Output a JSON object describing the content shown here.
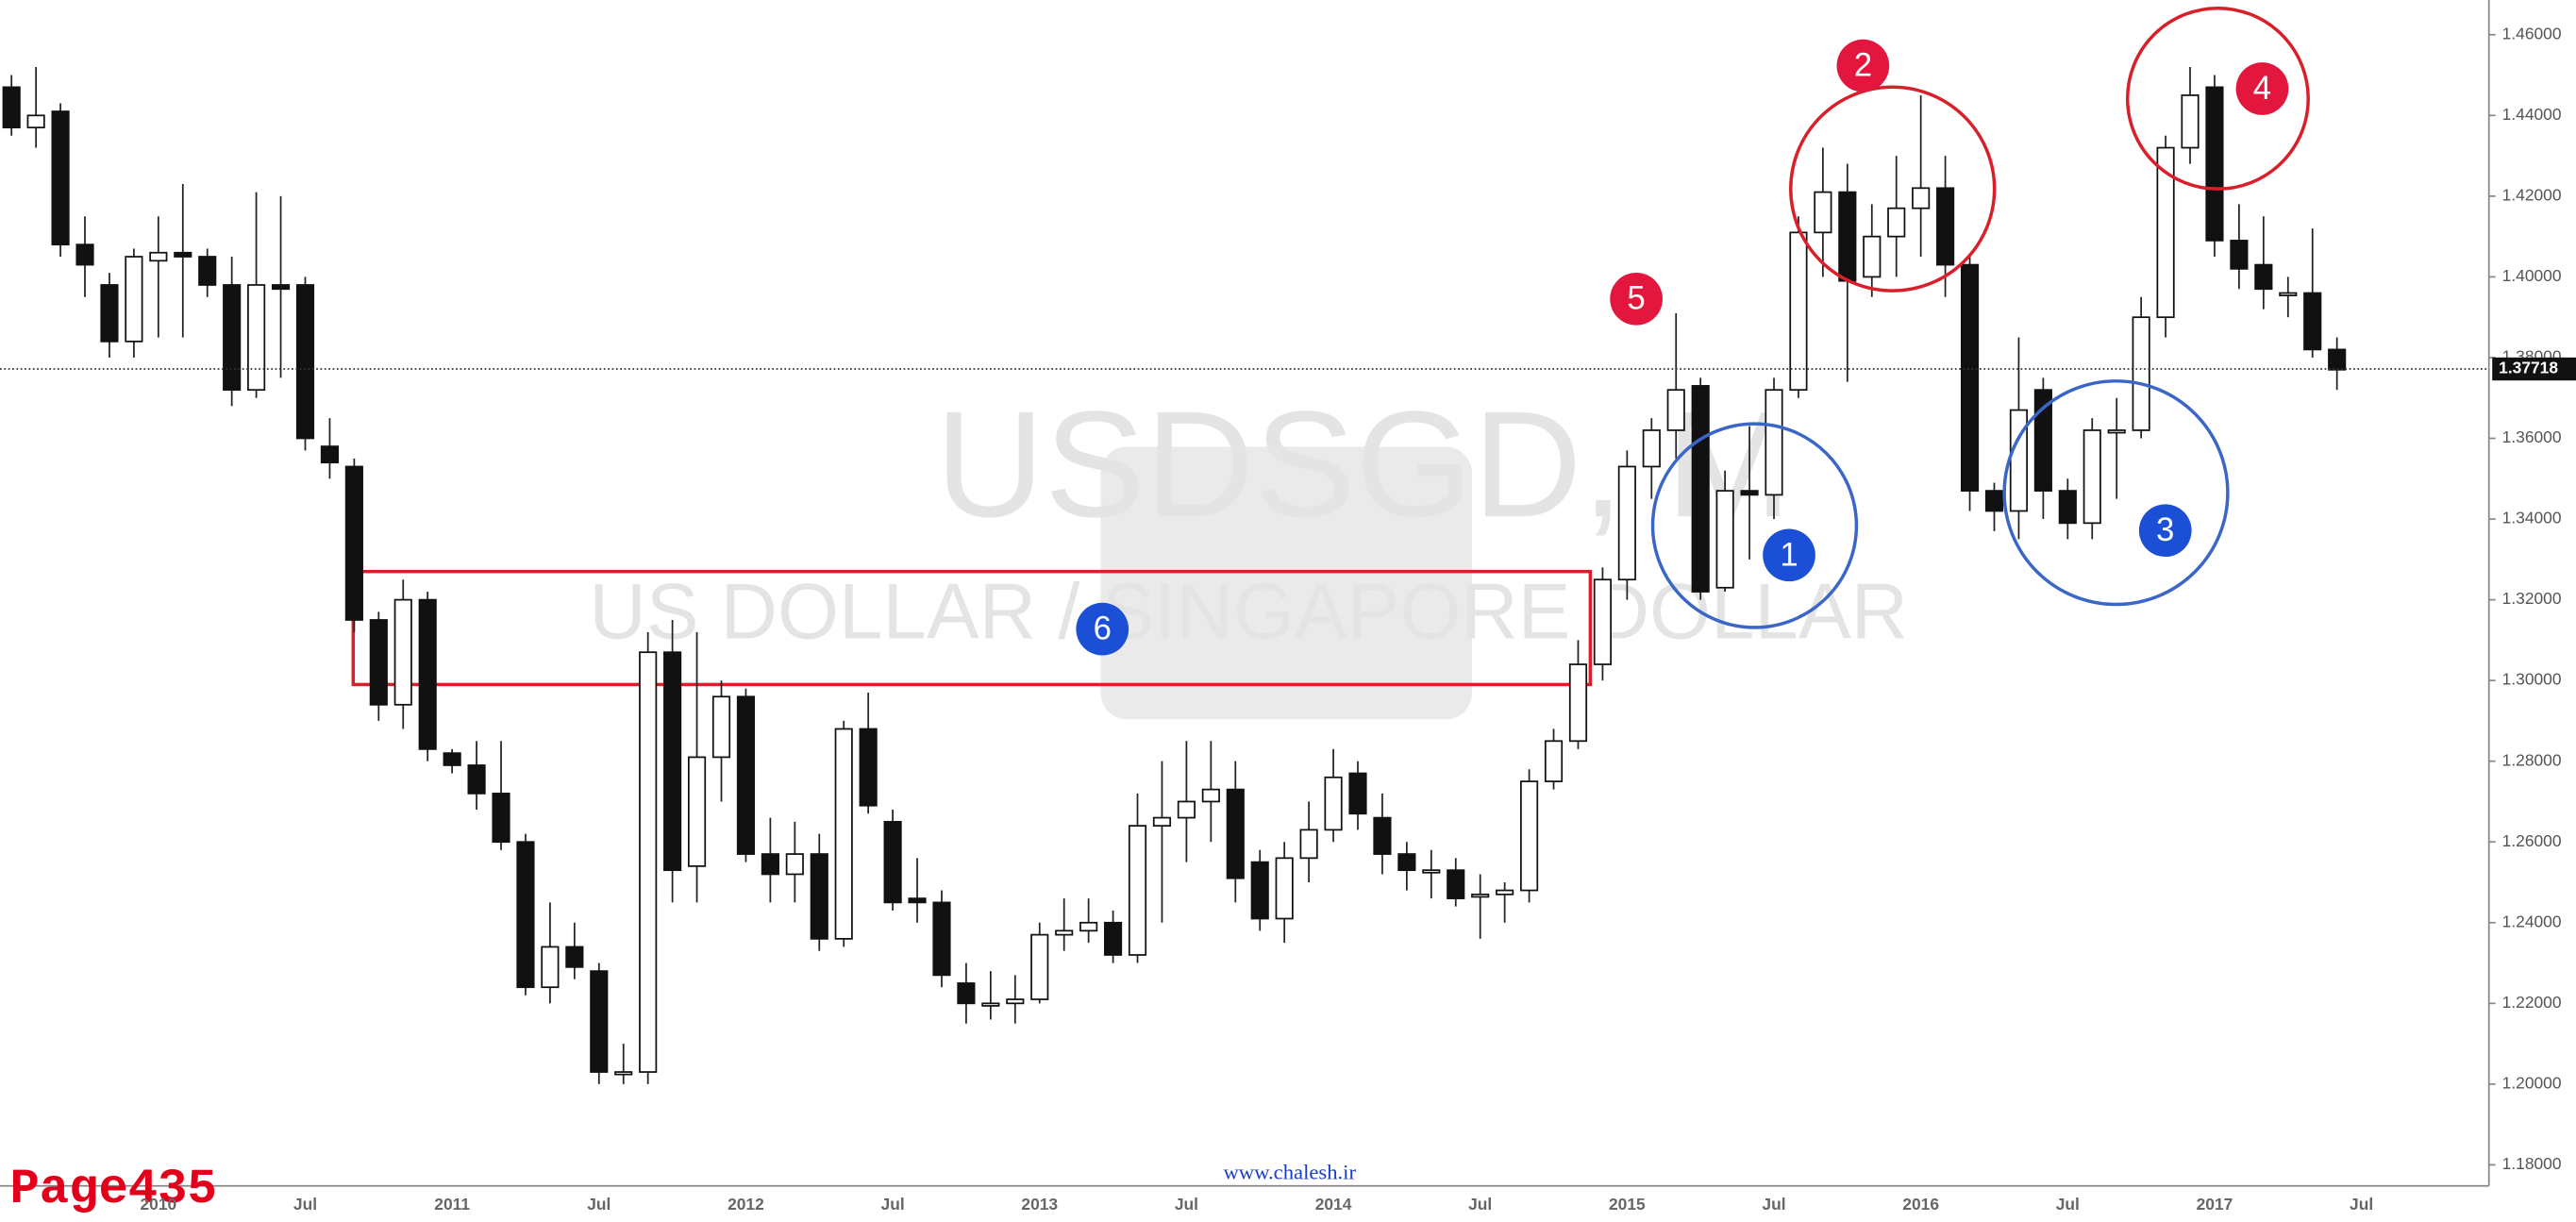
{
  "chart_data": {
    "type": "candlestick",
    "watermark_title": "USDSGD, M",
    "watermark_subtitle": "US DOLLAR / SINGAPORE DOLLAR",
    "website": "www.chalesh.ir",
    "page_label": "Page435",
    "categories": [
      null,
      null,
      null,
      null,
      null,
      null,
      "2010",
      null,
      null,
      null,
      null,
      null,
      "Jul",
      null,
      null,
      null,
      null,
      null,
      "2011",
      null,
      null,
      null,
      null,
      null,
      "Jul",
      null,
      null,
      null,
      null,
      null,
      "2012",
      null,
      null,
      null,
      null,
      null,
      "Jul",
      null,
      null,
      null,
      null,
      null,
      "2013",
      null,
      null,
      null,
      null,
      null,
      "Jul",
      null,
      null,
      null,
      null,
      null,
      "2014",
      null,
      null,
      null,
      null,
      null,
      "Jul",
      null,
      null,
      null,
      null,
      null,
      "2015",
      null,
      null,
      null,
      null,
      null,
      "Jul",
      null,
      null,
      null,
      null,
      null,
      "2016",
      null,
      null,
      null,
      null,
      null,
      "Jul",
      null,
      null,
      null,
      null,
      null,
      "2017",
      null,
      null,
      null,
      null,
      null,
      "Jul"
    ],
    "open": [
      1.447,
      1.437,
      1.441,
      1.408,
      1.398,
      1.384,
      1.404,
      1.406,
      1.405,
      1.398,
      1.372,
      1.398,
      1.398,
      1.358,
      1.353,
      1.315,
      1.294,
      1.32,
      1.282,
      1.279,
      1.272,
      1.26,
      1.224,
      1.234,
      1.228,
      1.203,
      1.203,
      1.307,
      1.254,
      1.281,
      1.296,
      1.257,
      1.252,
      1.257,
      1.236,
      1.288,
      1.265,
      1.246,
      1.245,
      1.225,
      1.22,
      1.22,
      1.221,
      1.237,
      1.238,
      1.24,
      1.232,
      1.264,
      1.266,
      1.27,
      1.273,
      1.255,
      1.241,
      1.256,
      1.263,
      1.277,
      1.266,
      1.257,
      1.253,
      1.253,
      1.247,
      1.247,
      1.248,
      1.275,
      1.285,
      1.304,
      1.325,
      1.353,
      1.362,
      1.373,
      1.323,
      1.347,
      1.346,
      1.372,
      1.411,
      1.421,
      1.4,
      1.41,
      1.417,
      1.422,
      1.403,
      1.347,
      1.342,
      1.372,
      1.347,
      1.339,
      1.362,
      1.362,
      1.39,
      1.432,
      1.447,
      1.409,
      1.403,
      1.396,
      1.396,
      1.382,
      null
    ],
    "high": [
      1.45,
      1.452,
      1.443,
      1.415,
      1.401,
      1.407,
      1.415,
      1.423,
      1.407,
      1.405,
      1.421,
      1.42,
      1.4,
      1.365,
      1.355,
      1.317,
      1.325,
      1.322,
      1.283,
      1.285,
      1.285,
      1.262,
      1.245,
      1.24,
      1.23,
      1.21,
      1.312,
      1.315,
      1.312,
      1.3,
      1.298,
      1.266,
      1.265,
      1.262,
      1.29,
      1.297,
      1.268,
      1.256,
      1.248,
      1.23,
      1.228,
      1.227,
      1.24,
      1.246,
      1.246,
      1.243,
      1.272,
      1.28,
      1.285,
      1.285,
      1.28,
      1.258,
      1.26,
      1.27,
      1.283,
      1.28,
      1.272,
      1.26,
      1.258,
      1.256,
      1.252,
      1.25,
      1.278,
      1.288,
      1.31,
      1.328,
      1.357,
      1.365,
      1.391,
      1.375,
      1.352,
      1.363,
      1.375,
      1.415,
      1.432,
      1.428,
      1.418,
      1.43,
      1.445,
      1.43,
      1.405,
      1.349,
      1.385,
      1.375,
      1.35,
      1.365,
      1.37,
      1.395,
      1.435,
      1.452,
      1.45,
      1.418,
      1.415,
      1.4,
      1.412,
      1.385,
      null
    ],
    "low": [
      1.435,
      1.432,
      1.405,
      1.395,
      1.38,
      1.38,
      1.385,
      1.385,
      1.395,
      1.368,
      1.37,
      1.375,
      1.357,
      1.35,
      1.312,
      1.29,
      1.288,
      1.28,
      1.277,
      1.268,
      1.258,
      1.222,
      1.22,
      1.226,
      1.2,
      1.2,
      1.2,
      1.245,
      1.245,
      1.27,
      1.255,
      1.245,
      1.245,
      1.233,
      1.234,
      1.267,
      1.243,
      1.24,
      1.224,
      1.215,
      1.216,
      1.215,
      1.22,
      1.233,
      1.235,
      1.23,
      1.23,
      1.24,
      1.255,
      1.26,
      1.245,
      1.238,
      1.235,
      1.25,
      1.26,
      1.263,
      1.252,
      1.248,
      1.246,
      1.244,
      1.236,
      1.24,
      1.245,
      1.273,
      1.283,
      1.3,
      1.32,
      1.345,
      1.355,
      1.32,
      1.322,
      1.33,
      1.34,
      1.37,
      1.4,
      1.374,
      1.395,
      1.4,
      1.405,
      1.395,
      1.342,
      1.337,
      1.335,
      1.34,
      1.335,
      1.335,
      1.345,
      1.36,
      1.385,
      1.428,
      1.405,
      1.397,
      1.392,
      1.39,
      1.38,
      1.372,
      null
    ],
    "close": [
      1.437,
      1.44,
      1.408,
      1.403,
      1.384,
      1.405,
      1.406,
      1.405,
      1.398,
      1.372,
      1.398,
      1.397,
      1.36,
      1.354,
      1.315,
      1.294,
      1.32,
      1.283,
      1.279,
      1.272,
      1.26,
      1.224,
      1.234,
      1.229,
      1.203,
      1.203,
      1.307,
      1.253,
      1.281,
      1.296,
      1.257,
      1.252,
      1.257,
      1.236,
      1.288,
      1.269,
      1.245,
      1.245,
      1.227,
      1.22,
      1.22,
      1.221,
      1.237,
      1.238,
      1.24,
      1.232,
      1.264,
      1.266,
      1.27,
      1.273,
      1.251,
      1.241,
      1.256,
      1.263,
      1.276,
      1.267,
      1.257,
      1.253,
      1.253,
      1.246,
      1.247,
      1.248,
      1.275,
      1.285,
      1.304,
      1.325,
      1.353,
      1.362,
      1.372,
      1.322,
      1.347,
      1.346,
      1.372,
      1.411,
      1.421,
      1.399,
      1.41,
      1.417,
      1.422,
      1.403,
      1.347,
      1.342,
      1.367,
      1.347,
      1.339,
      1.362,
      1.362,
      1.39,
      1.432,
      1.445,
      1.409,
      1.402,
      1.397,
      1.396,
      1.382,
      1.377,
      null
    ],
    "up_color": "#ffffff",
    "down_color": "#111111",
    "wick_color": "#222222",
    "ylim": [
      1.1756,
      1.4686
    ],
    "yticks": [
      {
        "value": 1.18,
        "label": "1.18000"
      },
      {
        "value": 1.2,
        "label": "1.20000"
      },
      {
        "value": 1.22,
        "label": "1.22000"
      },
      {
        "value": 1.24,
        "label": "1.24000"
      },
      {
        "value": 1.26,
        "label": "1.26000"
      },
      {
        "value": 1.28,
        "label": "1.28000"
      },
      {
        "value": 1.3,
        "label": "1.30000"
      },
      {
        "value": 1.32,
        "label": "1.32000"
      },
      {
        "value": 1.34,
        "label": "1.34000"
      },
      {
        "value": 1.36,
        "label": "1.36000"
      },
      {
        "value": 1.38,
        "label": "1.38000"
      },
      {
        "value": 1.4,
        "label": "1.40000"
      },
      {
        "value": 1.42,
        "label": "1.42000"
      },
      {
        "value": 1.44,
        "label": "1.44000"
      },
      {
        "value": 1.46,
        "label": "1.46000"
      }
    ],
    "last_price": {
      "value": 1.37718,
      "label": "1.37718"
    },
    "zone": [
      1.299,
      1.327
    ],
    "annotations": [
      "1",
      "2",
      "3",
      "4",
      "5",
      "6"
    ],
    "grid": false
  }
}
